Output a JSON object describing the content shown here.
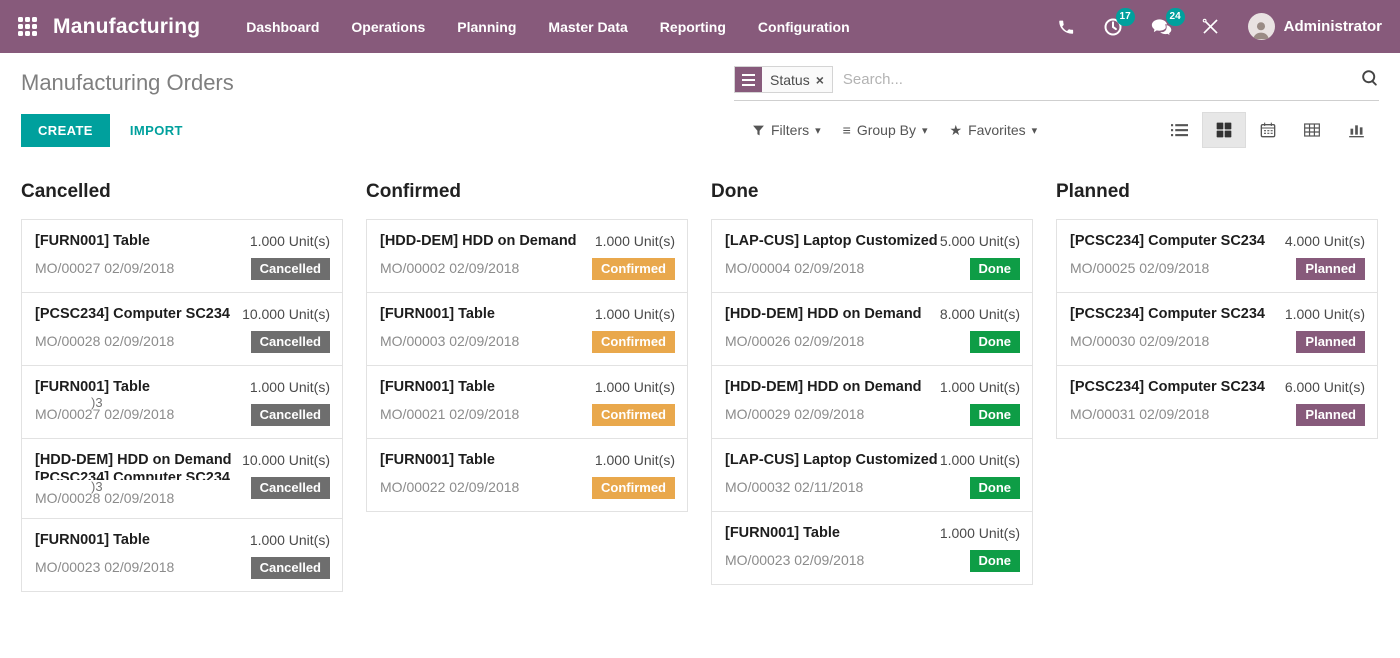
{
  "nav": {
    "app_name": "Manufacturing",
    "menu_items": [
      "Dashboard",
      "Operations",
      "Planning",
      "Master Data",
      "Reporting",
      "Configuration"
    ],
    "activity_count": "17",
    "message_count": "24",
    "user_name": "Administrator"
  },
  "control_panel": {
    "title": "Manufacturing Orders",
    "create_label": "CREATE",
    "import_label": "IMPORT",
    "search": {
      "facet_label": "Status",
      "close_glyph": "×",
      "placeholder": "Search..."
    },
    "filters_label": "Filters",
    "group_by_label": "Group By",
    "favorites_label": "Favorites"
  },
  "icons": {
    "caret_down": "▾",
    "star": "★",
    "hamburger": "≡"
  },
  "colors": {
    "brand_purple": "#875a7b",
    "accent_teal": "#00a09d",
    "badge_cancelled": "#6e6e6e",
    "badge_confirmed": "#e9a84c",
    "badge_done": "#0e9d46",
    "badge_planned": "#875a7b"
  },
  "kanban": {
    "columns": [
      {
        "title": "Cancelled",
        "cards": [
          {
            "title": "[FURN001] Table",
            "qty": "1.000 Unit(s)",
            "ref": "MO/00027 02/09/2018",
            "badge": "Cancelled",
            "state": "cancelled"
          },
          {
            "title": "[PCSC234] Computer SC234",
            "qty": "10.000 Unit(s)",
            "ref": "MO/00028 02/09/2018",
            "badge": "Cancelled",
            "state": "cancelled"
          },
          {
            "title": "[FURN001] Table",
            "qty": "1.000 Unit(s)",
            "ref": "MO/00027 02/09/2018",
            "badge": "Cancelled",
            "state": "cancelled",
            "artifact": ")3"
          },
          {
            "title": "[HDD-DEM] HDD on Demand",
            "ghost_title": "[PCSC234] Computer SC234",
            "qty": "10.000 Unit(s)",
            "ref": "MO/00028 02/09/2018",
            "badge": "Cancelled",
            "state": "cancelled",
            "artifact": ")3"
          },
          {
            "title": "[FURN001] Table",
            "qty": "1.000 Unit(s)",
            "ref": "MO/00023 02/09/2018",
            "badge": "Cancelled",
            "state": "cancelled"
          }
        ]
      },
      {
        "title": "Confirmed",
        "cards": [
          {
            "title": "[HDD-DEM] HDD on Demand",
            "qty": "1.000 Unit(s)",
            "ref": "MO/00002 02/09/2018",
            "badge": "Confirmed",
            "state": "confirmed"
          },
          {
            "title": "[FURN001] Table",
            "qty": "1.000 Unit(s)",
            "ref": "MO/00003 02/09/2018",
            "badge": "Confirmed",
            "state": "confirmed"
          },
          {
            "title": "[FURN001] Table",
            "qty": "1.000 Unit(s)",
            "ref": "MO/00021 02/09/2018",
            "badge": "Confirmed",
            "state": "confirmed"
          },
          {
            "title": "[FURN001] Table",
            "qty": "1.000 Unit(s)",
            "ref": "MO/00022 02/09/2018",
            "badge": "Confirmed",
            "state": "confirmed"
          }
        ]
      },
      {
        "title": "Done",
        "cards": [
          {
            "title": "[LAP-CUS] Laptop Customized",
            "qty": "5.000 Unit(s)",
            "ref": "MO/00004 02/09/2018",
            "badge": "Done",
            "state": "done"
          },
          {
            "title": "[HDD-DEM] HDD on Demand",
            "qty": "8.000 Unit(s)",
            "ref": "MO/00026 02/09/2018",
            "badge": "Done",
            "state": "done"
          },
          {
            "title": "[HDD-DEM] HDD on Demand",
            "qty": "1.000 Unit(s)",
            "ref": "MO/00029 02/09/2018",
            "badge": "Done",
            "state": "done"
          },
          {
            "title": "[LAP-CUS] Laptop Customized",
            "qty": "1.000 Unit(s)",
            "ref": "MO/00032 02/11/2018",
            "badge": "Done",
            "state": "done"
          },
          {
            "title": "[FURN001] Table",
            "qty": "1.000 Unit(s)",
            "ref": "MO/00023 02/09/2018",
            "badge": "Done",
            "state": "done"
          }
        ]
      },
      {
        "title": "Planned",
        "cards": [
          {
            "title": "[PCSC234] Computer SC234",
            "qty": "4.000 Unit(s)",
            "ref": "MO/00025 02/09/2018",
            "badge": "Planned",
            "state": "planned"
          },
          {
            "title": "[PCSC234] Computer SC234",
            "qty": "1.000 Unit(s)",
            "ref": "MO/00030 02/09/2018",
            "badge": "Planned",
            "state": "planned"
          },
          {
            "title": "[PCSC234] Computer SC234",
            "qty": "6.000 Unit(s)",
            "ref": "MO/00031 02/09/2018",
            "badge": "Planned",
            "state": "planned"
          }
        ]
      }
    ]
  }
}
